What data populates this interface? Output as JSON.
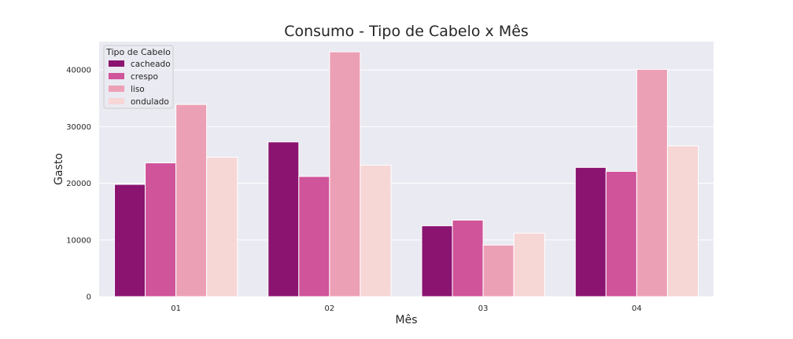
{
  "chart_data": {
    "type": "bar",
    "title": "Consumo - Tipo de Cabelo x Mês",
    "xlabel": "Mês",
    "ylabel": "Gasto",
    "categories": [
      "01",
      "02",
      "03",
      "04"
    ],
    "ylim": [
      0,
      45000
    ],
    "yticks": [
      0,
      10000,
      20000,
      30000,
      40000
    ],
    "grid": true,
    "legend_title": "Tipo de Cabelo",
    "legend_position": "top-left",
    "series": [
      {
        "name": "cacheado",
        "color": "#8a1470",
        "values": [
          19800,
          27300,
          12500,
          22800
        ]
      },
      {
        "name": "crespo",
        "color": "#d0549a",
        "values": [
          23600,
          21200,
          13500,
          22100
        ]
      },
      {
        "name": "liso",
        "color": "#eca0b6",
        "values": [
          33900,
          43200,
          9100,
          40100
        ]
      },
      {
        "name": "ondulado",
        "color": "#f7d6d6",
        "values": [
          24600,
          23200,
          11200,
          26600
        ]
      }
    ],
    "plot_background": "#eaeaf2",
    "grid_color": "#ffffff"
  }
}
